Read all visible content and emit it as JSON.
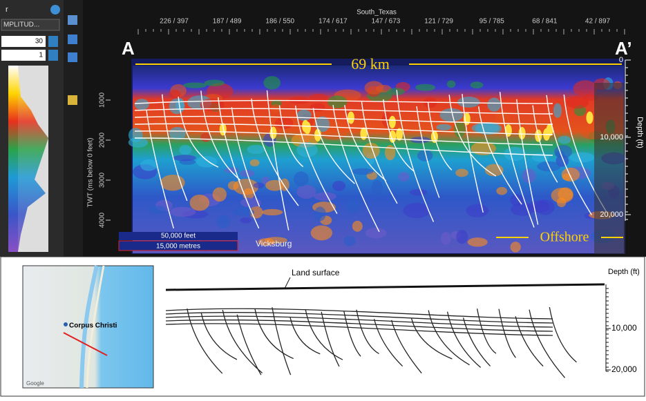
{
  "toolbar": {
    "title": "r",
    "attribute": "MPLITUD...",
    "field_1": "30",
    "field_2": "1"
  },
  "seismic_section": {
    "survey": "South_Texas",
    "trace_labels": [
      "226 / 397",
      "187 / 489",
      "186 / 550",
      "174 / 617",
      "147 / 673",
      "121 / 729",
      "95 / 785",
      "68 / 841",
      "42 / 897"
    ],
    "start_marker": "A",
    "end_marker": "A’",
    "distance": "69 km",
    "twt_axis": {
      "label": "TWT (ms below 0 feet)",
      "ticks": [
        "1000",
        "2000",
        "3000",
        "4000"
      ]
    },
    "depth_axis": {
      "label": "Depth (ft)",
      "ticks": [
        "0",
        "10,000",
        "20,000"
      ]
    },
    "scale_bar": {
      "feet": "50,000 feet",
      "metres": "15,000 metres"
    },
    "formation": "Vicksburg",
    "offshore": "Offshore"
  },
  "map": {
    "city": "Corpus Christi",
    "credit": "Google"
  },
  "cross_section": {
    "surface": "Land surface",
    "depth_label": "Depth (ft)",
    "ticks": [
      "10,000",
      "20,000"
    ]
  }
}
